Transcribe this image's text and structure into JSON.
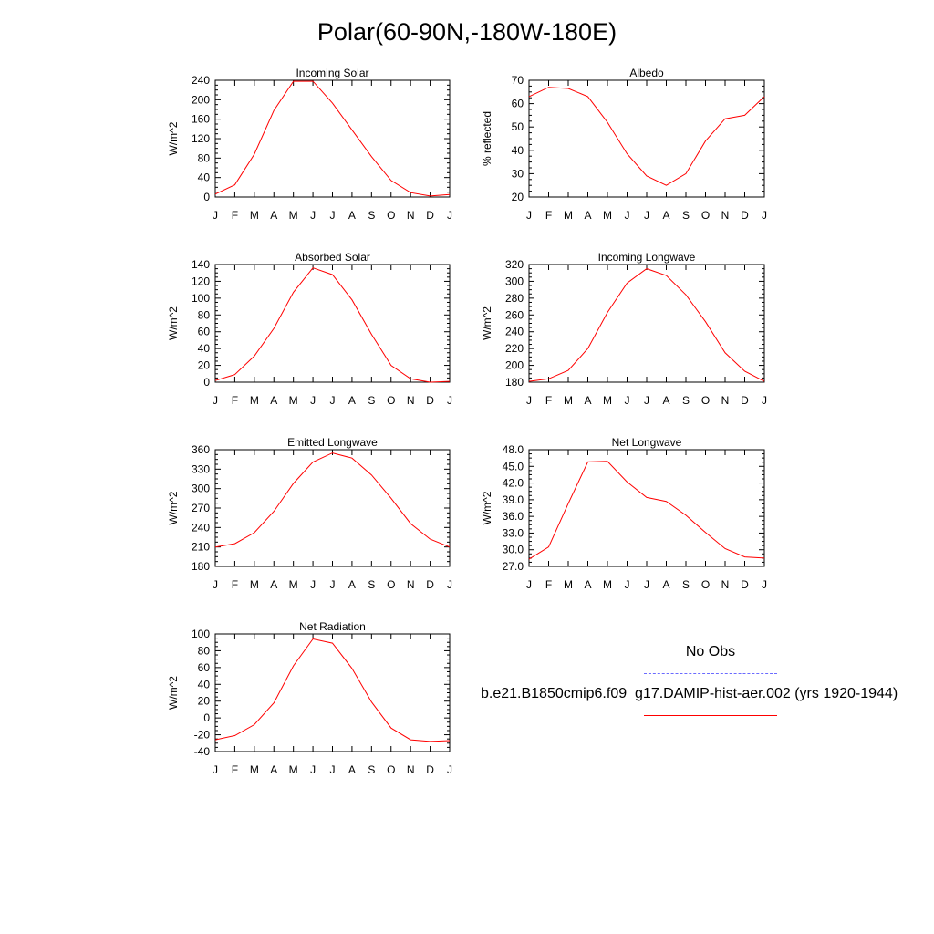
{
  "title": "Polar(60-90N,-180W-180E)",
  "legend": {
    "obs_label": "No Obs",
    "case_label": "b.e21.B1850cmip6.f09_g17.DAMIP-hist-aer.002 (yrs 1920-1944)",
    "obs_color": "#6b6bff",
    "case_color": "#ff0000"
  },
  "chart_data": [
    {
      "type": "line",
      "title": "Incoming Solar",
      "ylabel": "W/m^2",
      "xlabel": "",
      "categories": [
        "J",
        "F",
        "M",
        "A",
        "M",
        "J",
        "J",
        "A",
        "S",
        "O",
        "N",
        "D",
        "J"
      ],
      "ylim": [
        0,
        240
      ],
      "yticks": [
        "0",
        "40",
        "80",
        "120",
        "160",
        "200",
        "240"
      ],
      "series": [
        {
          "values": [
            6,
            25,
            88,
            178,
            238,
            238,
            193,
            138,
            83,
            34,
            9,
            2,
            5
          ]
        }
      ]
    },
    {
      "type": "line",
      "title": "Albedo",
      "ylabel": "% reflected",
      "xlabel": "",
      "categories": [
        "J",
        "F",
        "M",
        "A",
        "M",
        "J",
        "J",
        "A",
        "S",
        "O",
        "N",
        "D",
        "J"
      ],
      "ylim": [
        20,
        70
      ],
      "yticks": [
        "20",
        "30",
        "40",
        "50",
        "60",
        "70"
      ],
      "series": [
        {
          "values": [
            63,
            67,
            66.5,
            63,
            52,
            38.5,
            29,
            25,
            30,
            44,
            53.5,
            55,
            63
          ]
        }
      ]
    },
    {
      "type": "line",
      "title": "Absorbed Solar",
      "ylabel": "W/m^2",
      "xlabel": "",
      "categories": [
        "J",
        "F",
        "M",
        "A",
        "M",
        "J",
        "J",
        "A",
        "S",
        "O",
        "N",
        "D",
        "J"
      ],
      "ylim": [
        0,
        140
      ],
      "yticks": [
        "0",
        "20",
        "40",
        "60",
        "80",
        "100",
        "120",
        "140"
      ],
      "series": [
        {
          "values": [
            2,
            9,
            31,
            64,
            107,
            136,
            128,
            98,
            57,
            20,
            4,
            0,
            1
          ]
        }
      ]
    },
    {
      "type": "line",
      "title": "Incoming Longwave",
      "ylabel": "W/m^2",
      "xlabel": "",
      "categories": [
        "J",
        "F",
        "M",
        "A",
        "M",
        "J",
        "J",
        "A",
        "S",
        "O",
        "N",
        "D",
        "J"
      ],
      "ylim": [
        180,
        320
      ],
      "yticks": [
        "180",
        "200",
        "220",
        "240",
        "260",
        "280",
        "300",
        "320"
      ],
      "series": [
        {
          "values": [
            181,
            184,
            194,
            220,
            263,
            298,
            315,
            307,
            284,
            252,
            215,
            193,
            181
          ]
        }
      ]
    },
    {
      "type": "line",
      "title": "Emitted Longwave",
      "ylabel": "W/m^2",
      "xlabel": "",
      "categories": [
        "J",
        "F",
        "M",
        "A",
        "M",
        "J",
        "J",
        "A",
        "S",
        "O",
        "N",
        "D",
        "J"
      ],
      "ylim": [
        180,
        360
      ],
      "yticks": [
        "180",
        "210",
        "240",
        "270",
        "300",
        "330",
        "360"
      ],
      "series": [
        {
          "values": [
            210,
            215,
            232,
            265,
            308,
            341,
            355,
            347,
            321,
            285,
            246,
            222,
            210
          ]
        }
      ]
    },
    {
      "type": "line",
      "title": "Net Longwave",
      "ylabel": "W/m^2",
      "xlabel": "",
      "categories": [
        "J",
        "F",
        "M",
        "A",
        "M",
        "J",
        "J",
        "A",
        "S",
        "O",
        "N",
        "D",
        "J"
      ],
      "ylim": [
        27,
        48
      ],
      "yticks": [
        "27.0",
        "30.0",
        "33.0",
        "36.0",
        "39.0",
        "42.0",
        "45.0",
        "48.0"
      ],
      "series": [
        {
          "values": [
            28.3,
            30.5,
            38.3,
            45.8,
            45.9,
            42.2,
            39.4,
            38.7,
            36.2,
            33.1,
            30.2,
            28.7,
            28.5
          ]
        }
      ]
    },
    {
      "type": "line",
      "title": "Net Radiation",
      "ylabel": "W/m^2",
      "xlabel": "",
      "categories": [
        "J",
        "F",
        "M",
        "A",
        "M",
        "J",
        "J",
        "A",
        "S",
        "O",
        "N",
        "D",
        "J"
      ],
      "ylim": [
        -40,
        100
      ],
      "yticks": [
        "-40",
        "-20",
        "0",
        "20",
        "40",
        "60",
        "80",
        "100"
      ],
      "series": [
        {
          "values": [
            -26,
            -21,
            -8,
            18,
            62,
            94,
            89,
            59,
            19,
            -12,
            -26,
            -28,
            -27
          ]
        }
      ]
    }
  ]
}
